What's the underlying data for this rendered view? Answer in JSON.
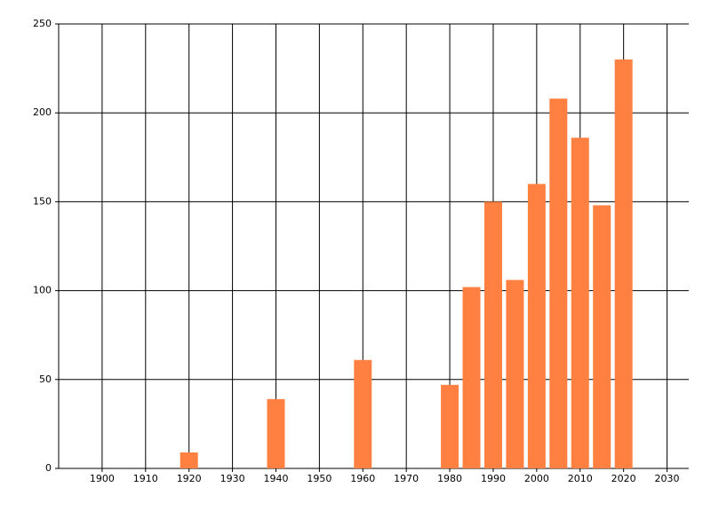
{
  "chart_data": {
    "type": "bar",
    "x": [
      1920,
      1940,
      1960,
      1980,
      1985,
      1990,
      1995,
      2000,
      2005,
      2010,
      2015,
      2020
    ],
    "values": [
      9,
      39,
      61,
      47,
      102,
      150,
      106,
      160,
      208,
      186,
      148,
      230
    ],
    "color": "#ff8040",
    "xlim": [
      1890,
      2035
    ],
    "xticks": [
      1900,
      1910,
      1920,
      1930,
      1940,
      1950,
      1960,
      1970,
      1980,
      1990,
      2000,
      2010,
      2020,
      2030
    ],
    "ylim": [
      0,
      250
    ],
    "yticks": [
      0,
      50,
      100,
      150,
      200,
      250
    ],
    "grid": true
  }
}
